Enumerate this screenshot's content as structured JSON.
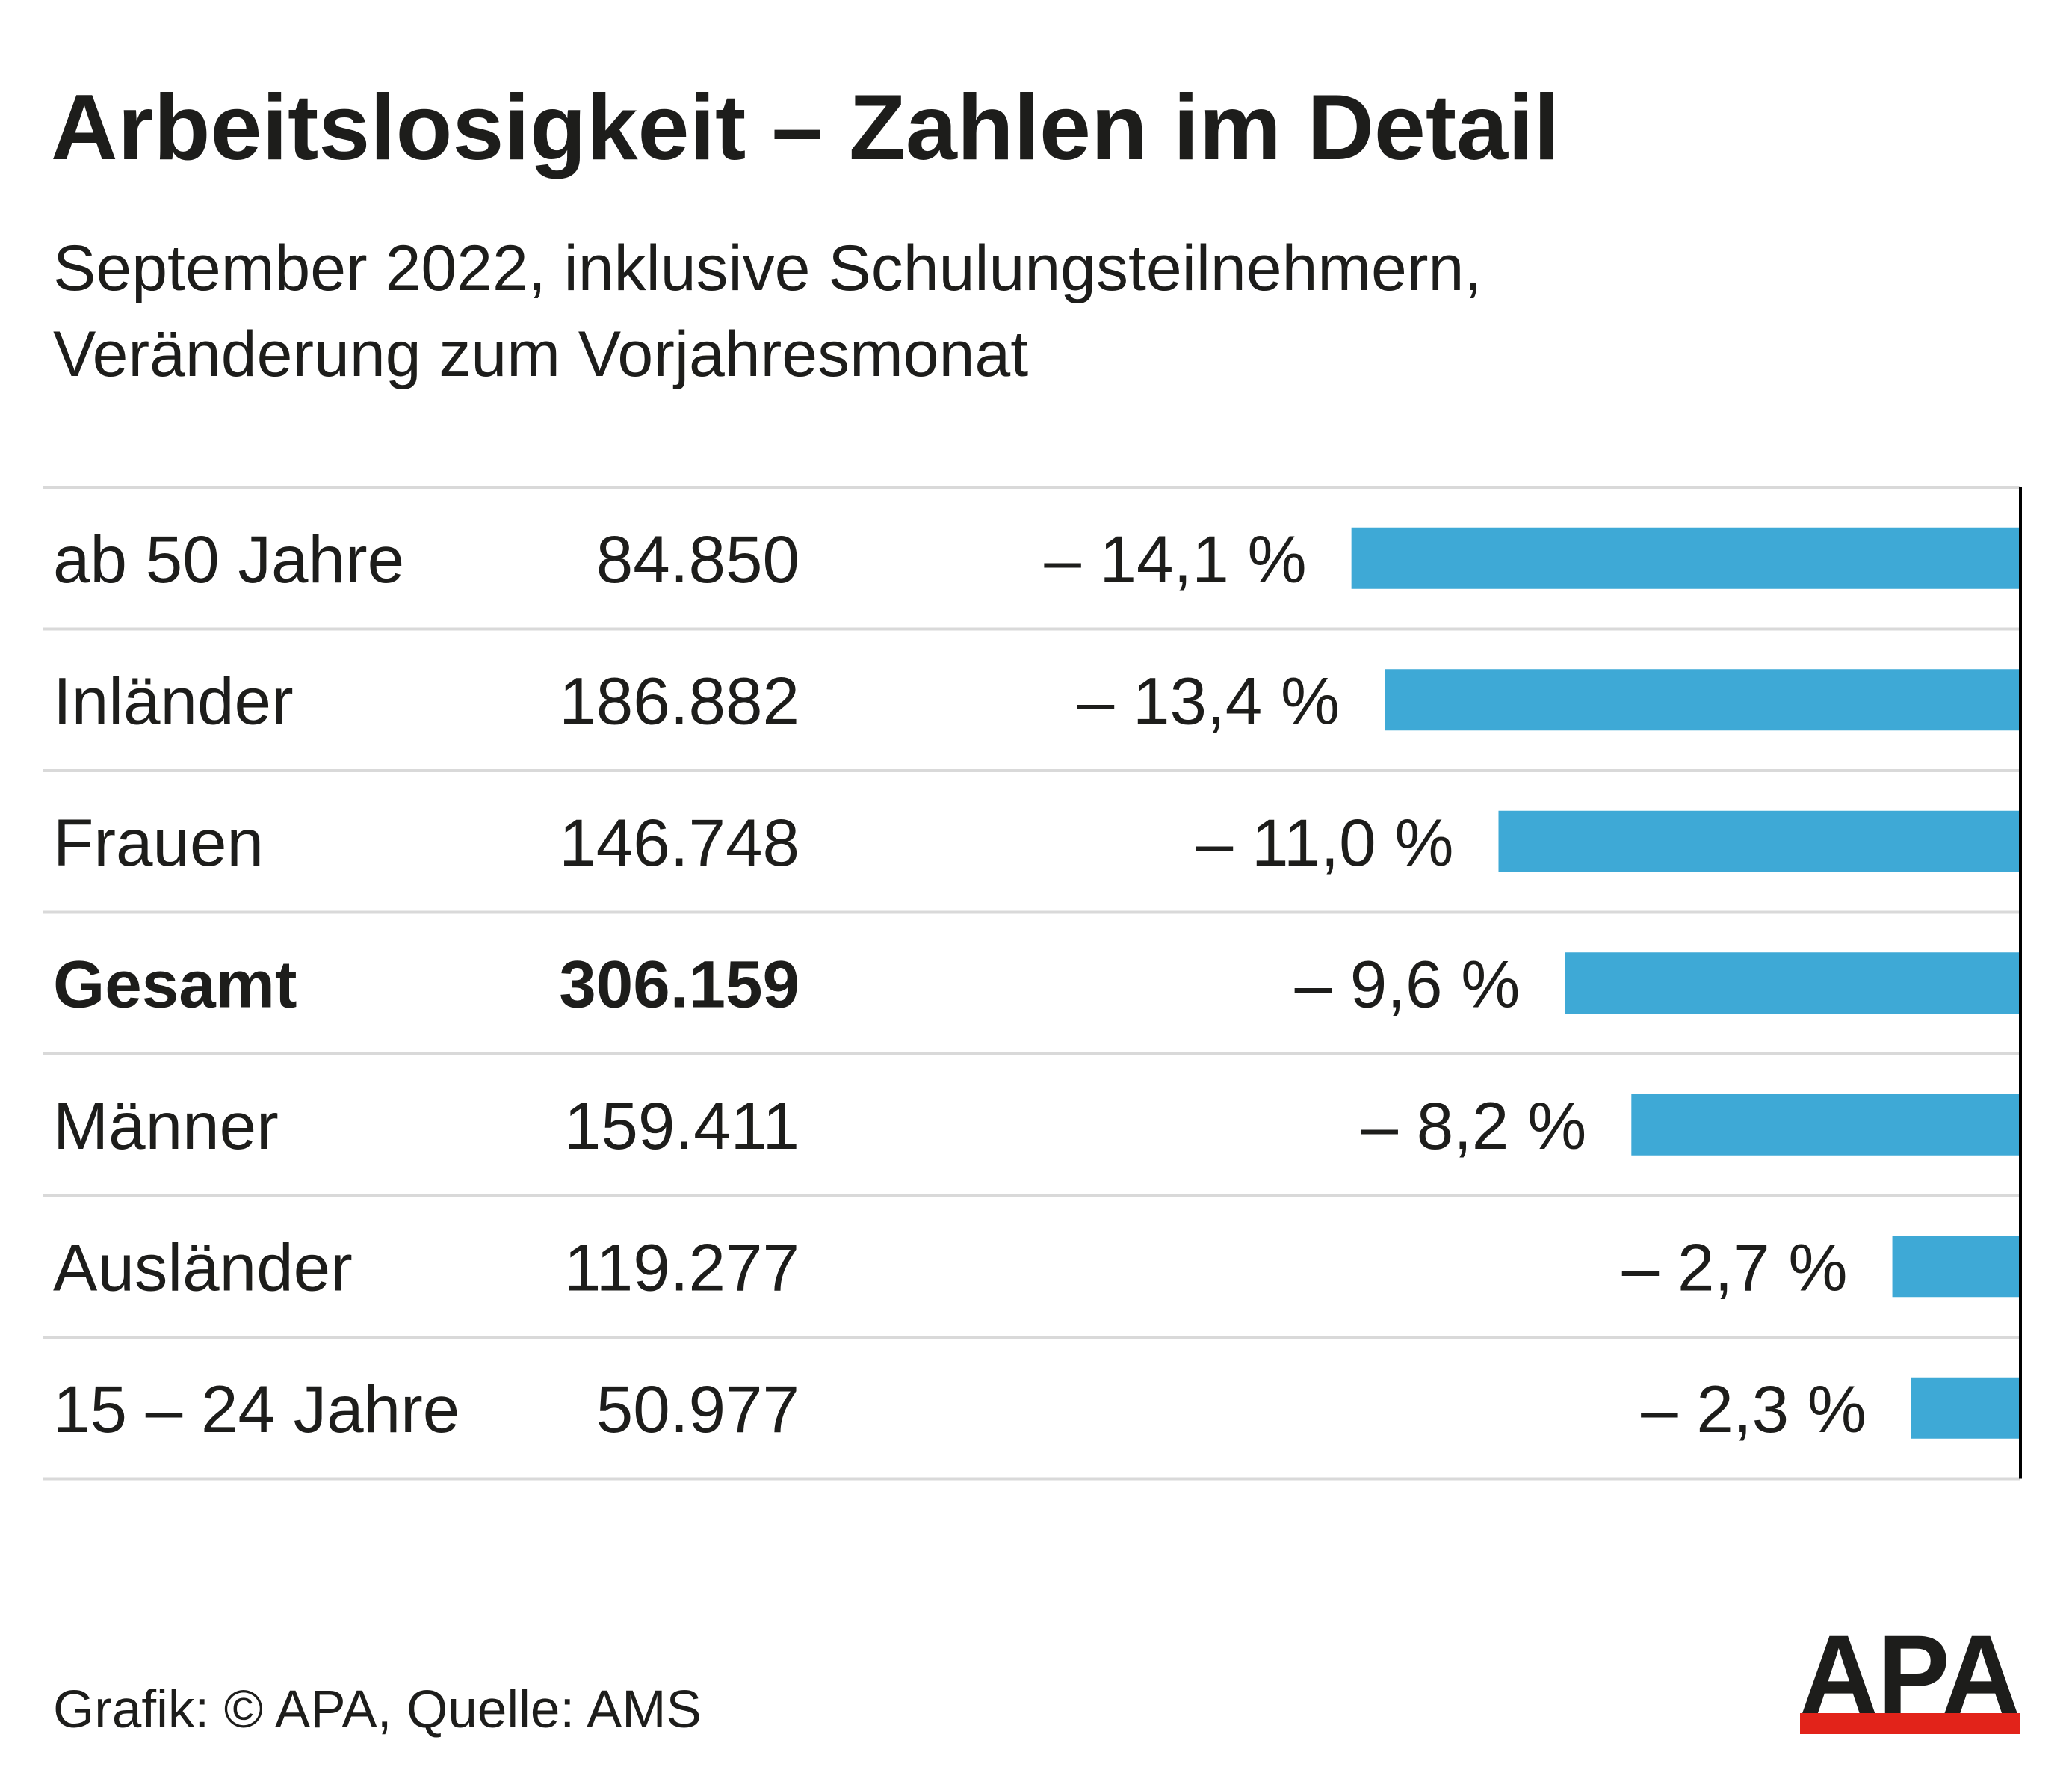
{
  "chart_data": {
    "type": "bar",
    "title": "Arbeitslosigkeit – Zahlen im Detail",
    "subtitle": [
      "September 2022, inklusive Schulungsteilnehmern,",
      "Veränderung zum Vorjahresmonat"
    ],
    "categories": [
      "ab 50 Jahre",
      "Inländer",
      "Frauen",
      "Gesamt",
      "Männer",
      "Ausländer",
      "15 – 24 Jahre"
    ],
    "counts": [
      "84.850",
      "186.882",
      "146.748",
      "306.159",
      "159.411",
      "119.277",
      "50.977"
    ],
    "values": [
      -14.1,
      -13.4,
      -11.0,
      -9.6,
      -8.2,
      -2.7,
      -2.3
    ],
    "value_labels": [
      "– 14,1 %",
      "– 13,4 %",
      "– 11,0 %",
      "– 9,6 %",
      "– 8,2 %",
      "– 2,7 %",
      "– 2,3 %"
    ],
    "bold": [
      false,
      false,
      false,
      true,
      false,
      false,
      false
    ],
    "color": "#3ea9d6",
    "xlim": [
      -20,
      0
    ],
    "source": "Grafik: © APA, Quelle: AMS",
    "logo": "APA"
  }
}
